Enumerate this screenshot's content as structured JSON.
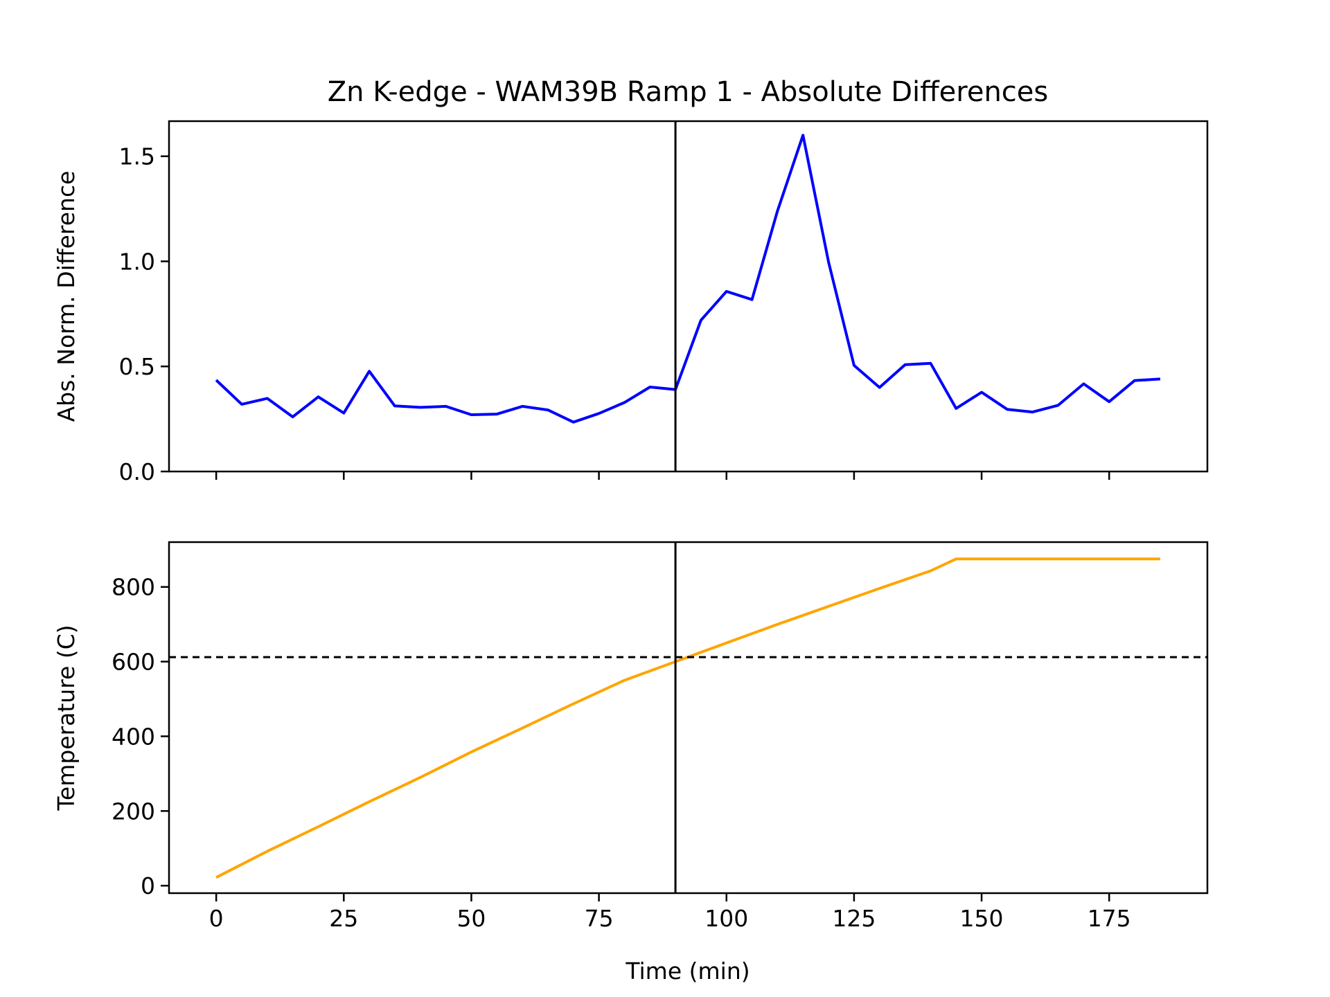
{
  "chart_data": {
    "title": "Zn K-edge - WAM39B Ramp 1 - Absolute Differences",
    "xlabel": "Time (min)",
    "xlim": [
      -9.25,
      194.25
    ],
    "xticks": [
      0,
      25,
      50,
      75,
      100,
      125,
      150,
      175
    ],
    "vertical_line_x": 90,
    "vertical_line_color": "#000000",
    "panels": [
      {
        "type": "line",
        "ylabel": "Abs. Norm. Difference",
        "ylim": [
          0,
          1.667
        ],
        "yticks": [
          "0.0",
          "0.5",
          "1.0",
          "1.5"
        ],
        "show_xtick_labels": false,
        "series": [
          {
            "color": "#0000ff",
            "x": [
              0,
              5,
              10,
              15,
              20,
              25,
              30,
              35,
              40,
              45,
              50,
              55,
              60,
              65,
              70,
              75,
              80,
              85,
              90,
              95,
              100,
              105,
              110,
              115,
              120,
              125,
              130,
              135,
              140,
              145,
              150,
              155,
              160,
              165,
              170,
              175,
              180,
              185
            ],
            "y": [
              0.435,
              0.32,
              0.348,
              0.26,
              0.355,
              0.278,
              0.477,
              0.312,
              0.305,
              0.31,
              0.27,
              0.273,
              0.31,
              0.293,
              0.235,
              0.276,
              0.328,
              0.402,
              0.39,
              0.72,
              0.857,
              0.818,
              1.24,
              1.6,
              0.997,
              0.505,
              0.4,
              0.508,
              0.515,
              0.3,
              0.377,
              0.296,
              0.283,
              0.315,
              0.417,
              0.332,
              0.433,
              0.44
            ]
          }
        ]
      },
      {
        "type": "line",
        "ylabel": "Temperature (C)",
        "ylim": [
          -20,
          920
        ],
        "yticks": [
          "0",
          "200",
          "400",
          "600",
          "800"
        ],
        "show_xtick_labels": true,
        "horizontal_line_y": 612,
        "horizontal_line_style": "dashed",
        "series": [
          {
            "color": "#ffa500",
            "x": [
              0,
              10,
              20,
              30,
              40,
              50,
              60,
              70,
              80,
              90,
              100,
              110,
              120,
              130,
              140,
              145,
              150,
              160,
              170,
              180,
              185
            ],
            "y": [
              22,
              92,
              158,
              225,
              290,
              358,
              422,
              487,
              550,
              600,
              650,
              700,
              748,
              796,
              843,
              875,
              875,
              875,
              875,
              875,
              875
            ]
          }
        ]
      }
    ]
  }
}
